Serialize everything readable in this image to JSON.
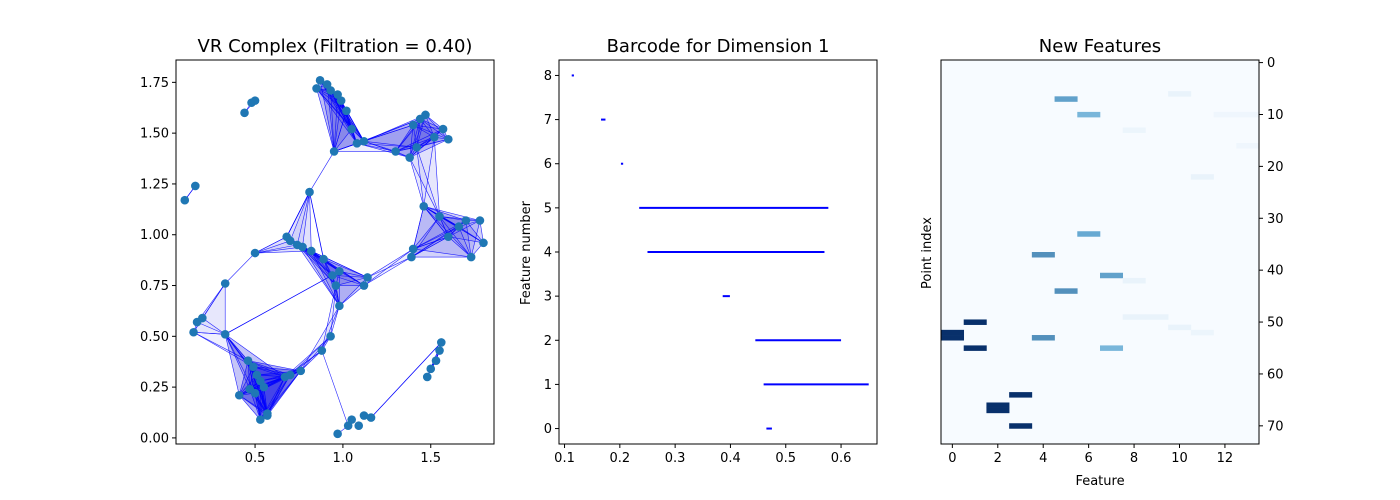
{
  "chart_data": [
    {
      "type": "scatter",
      "title": "VR Complex (Filtration = 0.40)",
      "xlabel": "",
      "ylabel": "",
      "xlim": [
        0.05,
        1.86
      ],
      "ylim": [
        -0.03,
        1.86
      ],
      "xticks": [
        "0.5",
        "1.0",
        "1.5"
      ],
      "yticks": [
        "0.00",
        "0.25",
        "0.50",
        "0.75",
        "1.00",
        "1.25",
        "1.50",
        "1.75"
      ],
      "grid": false,
      "point_color": "#1f77b4",
      "edge_color": "#0000ff",
      "points": [
        [
          0.1,
          1.17
        ],
        [
          0.16,
          1.24
        ],
        [
          0.44,
          1.6
        ],
        [
          0.48,
          1.65
        ],
        [
          0.5,
          1.66
        ],
        [
          0.87,
          1.76
        ],
        [
          0.85,
          1.72
        ],
        [
          0.91,
          1.74
        ],
        [
          0.93,
          1.71
        ],
        [
          0.97,
          1.69
        ],
        [
          0.99,
          1.66
        ],
        [
          1.02,
          1.61
        ],
        [
          1.05,
          1.52
        ],
        [
          1.08,
          1.45
        ],
        [
          1.12,
          1.46
        ],
        [
          0.95,
          1.41
        ],
        [
          1.4,
          1.54
        ],
        [
          1.44,
          1.57
        ],
        [
          1.47,
          1.59
        ],
        [
          1.52,
          1.48
        ],
        [
          1.57,
          1.52
        ],
        [
          1.6,
          1.47
        ],
        [
          1.38,
          1.38
        ],
        [
          1.42,
          1.43
        ],
        [
          1.3,
          1.41
        ],
        [
          0.81,
          1.21
        ],
        [
          1.46,
          1.14
        ],
        [
          1.55,
          1.09
        ],
        [
          1.7,
          1.07
        ],
        [
          1.78,
          1.07
        ],
        [
          1.8,
          0.96
        ],
        [
          1.73,
          0.89
        ],
        [
          1.66,
          1.04
        ],
        [
          1.6,
          0.99
        ],
        [
          1.4,
          0.93
        ],
        [
          1.39,
          0.89
        ],
        [
          0.5,
          0.91
        ],
        [
          0.68,
          0.99
        ],
        [
          0.7,
          0.97
        ],
        [
          0.74,
          0.95
        ],
        [
          0.77,
          0.94
        ],
        [
          0.82,
          0.92
        ],
        [
          0.89,
          0.88
        ],
        [
          0.94,
          0.8
        ],
        [
          0.98,
          0.82
        ],
        [
          1.14,
          0.79
        ],
        [
          1.12,
          0.75
        ],
        [
          0.98,
          0.65
        ],
        [
          0.96,
          0.75
        ],
        [
          0.33,
          0.76
        ],
        [
          0.17,
          0.57
        ],
        [
          0.2,
          0.59
        ],
        [
          0.15,
          0.52
        ],
        [
          0.33,
          0.51
        ],
        [
          0.46,
          0.38
        ],
        [
          0.49,
          0.35
        ],
        [
          0.51,
          0.31
        ],
        [
          0.53,
          0.28
        ],
        [
          0.55,
          0.25
        ],
        [
          0.5,
          0.22
        ],
        [
          0.47,
          0.24
        ],
        [
          0.41,
          0.21
        ],
        [
          0.53,
          0.09
        ],
        [
          0.57,
          0.11
        ],
        [
          0.57,
          0.12
        ],
        [
          0.67,
          0.3
        ],
        [
          0.7,
          0.31
        ],
        [
          0.76,
          0.33
        ],
        [
          0.88,
          0.43
        ],
        [
          0.93,
          0.5
        ],
        [
          0.97,
          0.02
        ],
        [
          1.03,
          0.06
        ],
        [
          1.05,
          0.09
        ],
        [
          1.09,
          0.06
        ],
        [
          1.12,
          0.11
        ],
        [
          1.16,
          0.1
        ],
        [
          1.48,
          0.3
        ],
        [
          1.5,
          0.34
        ],
        [
          1.53,
          0.38
        ],
        [
          1.55,
          0.43
        ],
        [
          1.56,
          0.47
        ]
      ],
      "clusters": [
        [
          2,
          3,
          4
        ],
        [
          5,
          6,
          7,
          8,
          9,
          10,
          11,
          12,
          13,
          14,
          15
        ],
        [
          13,
          14,
          15,
          24,
          22,
          16,
          17,
          18,
          23,
          19,
          20,
          21
        ],
        [
          22,
          23,
          19,
          26,
          27,
          32,
          33
        ],
        [
          26,
          27,
          28,
          29,
          30,
          31,
          32,
          33,
          34,
          35
        ],
        [
          36,
          37,
          38,
          39,
          40,
          41,
          25
        ],
        [
          39,
          40,
          41,
          42,
          43,
          44,
          45,
          46,
          47,
          48
        ],
        [
          45,
          46,
          34,
          35,
          33
        ],
        [
          49,
          50,
          51,
          52,
          53
        ],
        [
          52,
          53,
          54,
          55,
          56,
          57,
          58,
          59,
          60,
          61,
          62,
          63,
          64,
          65,
          66,
          67
        ],
        [
          67,
          68,
          69,
          47,
          48,
          65,
          66
        ],
        [
          15,
          25,
          11
        ],
        [
          36,
          49,
          37
        ],
        [
          64,
          70,
          71,
          68
        ],
        [
          76,
          77,
          78,
          79,
          80,
          71
        ]
      ],
      "extra_edges": [
        [
          0,
          1
        ],
        [
          25,
          37
        ],
        [
          25,
          42
        ],
        [
          44,
          53
        ],
        [
          80,
          75
        ]
      ]
    },
    {
      "type": "barcode",
      "title": "Barcode for Dimension 1",
      "xlabel": "",
      "ylabel": "Feature number",
      "xlim": [
        0.09,
        0.665
      ],
      "ylim": [
        -0.35,
        8.35
      ],
      "xticks": [
        "0.1",
        "0.2",
        "0.3",
        "0.4",
        "0.5",
        "0.6"
      ],
      "yticks": [
        "0",
        "1",
        "2",
        "3",
        "4",
        "5",
        "6",
        "7",
        "8"
      ],
      "grid": false,
      "bar_color": "#0000ff",
      "bars": [
        {
          "feature": 0,
          "birth": 0.465,
          "death": 0.475
        },
        {
          "feature": 1,
          "birth": 0.46,
          "death": 0.65
        },
        {
          "feature": 2,
          "birth": 0.445,
          "death": 0.6
        },
        {
          "feature": 3,
          "birth": 0.386,
          "death": 0.399
        },
        {
          "feature": 4,
          "birth": 0.25,
          "death": 0.57
        },
        {
          "feature": 5,
          "birth": 0.235,
          "death": 0.577
        },
        {
          "feature": 6,
          "birth": 0.202,
          "death": 0.206
        },
        {
          "feature": 7,
          "birth": 0.166,
          "death": 0.174
        },
        {
          "feature": 8,
          "birth": 0.113,
          "death": 0.117
        }
      ]
    },
    {
      "type": "heatmap",
      "title": "New Features",
      "xlabel": "Feature",
      "ylabel": "Point index",
      "colormap": "Blues",
      "n_rows": 74,
      "n_cols": 14,
      "xticks": [
        "0",
        "2",
        "4",
        "6",
        "8",
        "10",
        "12"
      ],
      "yticks": [
        "0",
        "10",
        "20",
        "30",
        "40",
        "50",
        "60",
        "70"
      ],
      "cells": [
        {
          "row": 7,
          "col": 5,
          "value": 0.55
        },
        {
          "row": 10,
          "col": 6,
          "value": 0.45
        },
        {
          "row": 6,
          "col": 10,
          "value": 0.05
        },
        {
          "row": 13,
          "col": 8,
          "value": 0.04
        },
        {
          "row": 10,
          "col": 12,
          "value": 0.03
        },
        {
          "row": 10,
          "col": 13,
          "value": 0.03
        },
        {
          "row": 16,
          "col": 13,
          "value": 0.03
        },
        {
          "row": 22,
          "col": 11,
          "value": 0.05
        },
        {
          "row": 33,
          "col": 6,
          "value": 0.52
        },
        {
          "row": 37,
          "col": 4,
          "value": 0.62
        },
        {
          "row": 41,
          "col": 7,
          "value": 0.55
        },
        {
          "row": 42,
          "col": 8,
          "value": 0.05
        },
        {
          "row": 44,
          "col": 5,
          "value": 0.62
        },
        {
          "row": 49,
          "col": 8,
          "value": 0.05
        },
        {
          "row": 49,
          "col": 9,
          "value": 0.05
        },
        {
          "row": 50,
          "col": 1,
          "value": 1.0
        },
        {
          "row": 51,
          "col": 10,
          "value": 0.05
        },
        {
          "row": 52,
          "col": 0,
          "value": 1.0
        },
        {
          "row": 53,
          "col": 0,
          "value": 1.0
        },
        {
          "row": 52,
          "col": 11,
          "value": 0.04
        },
        {
          "row": 53,
          "col": 4,
          "value": 0.62
        },
        {
          "row": 55,
          "col": 1,
          "value": 1.0
        },
        {
          "row": 55,
          "col": 7,
          "value": 0.45
        },
        {
          "row": 64,
          "col": 3,
          "value": 1.0
        },
        {
          "row": 66,
          "col": 2,
          "value": 1.0
        },
        {
          "row": 67,
          "col": 2,
          "value": 1.0
        },
        {
          "row": 70,
          "col": 3,
          "value": 1.0
        }
      ]
    }
  ]
}
